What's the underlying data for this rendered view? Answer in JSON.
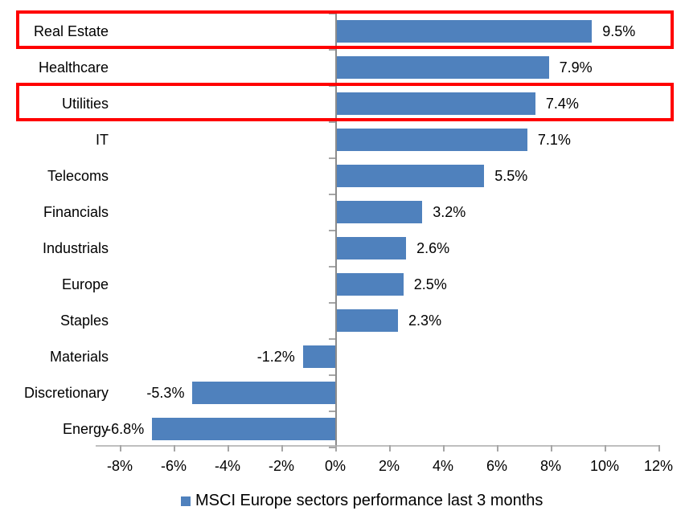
{
  "chart_data": {
    "type": "bar",
    "orientation": "horizontal",
    "categories": [
      "Real Estate",
      "Healthcare",
      "Utilities",
      "IT",
      "Telecoms",
      "Financials",
      "Industrials",
      "Europe",
      "Staples",
      "Materials",
      "Discretionary",
      "Energy"
    ],
    "values": [
      9.5,
      7.9,
      7.4,
      7.1,
      5.5,
      3.2,
      2.6,
      2.5,
      2.3,
      -1.2,
      -5.3,
      -6.8
    ],
    "data_labels": [
      "9.5%",
      "7.9%",
      "7.4%",
      "7.1%",
      "5.5%",
      "3.2%",
      "2.6%",
      "2.5%",
      "2.3%",
      "-1.2%",
      "-5.3%",
      "-6.8%"
    ],
    "tick_values": [
      -8,
      -6,
      -4,
      -2,
      0,
      2,
      4,
      6,
      8,
      10,
      12
    ],
    "x_ticks": [
      "-8%",
      "-6%",
      "-4%",
      "-2%",
      "0%",
      "2%",
      "4%",
      "6%",
      "8%",
      "10%",
      "12%"
    ],
    "xlim": [
      -8,
      12
    ],
    "grid": "off",
    "legend": "MSCI Europe sectors performance last 3 months",
    "legend_position": "bottom",
    "bar_color": "#4F81BD",
    "highlight_color": "#FF0000",
    "highlighted_categories": [
      "Real Estate",
      "Utilities"
    ]
  }
}
